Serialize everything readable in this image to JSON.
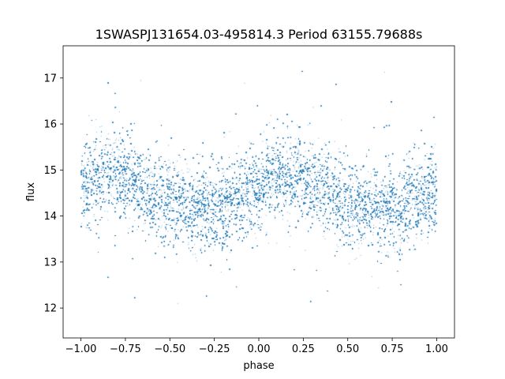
{
  "chart_data": {
    "type": "scatter",
    "title": "1SWASPJ131654.03-495814.3 Period 63155.79688s",
    "xlabel": "phase",
    "ylabel": "flux",
    "xlim": [
      -1.1,
      1.1
    ],
    "ylim": [
      11.35,
      17.7
    ],
    "xticks": [
      -1.0,
      -0.75,
      -0.5,
      -0.25,
      0.0,
      0.25,
      0.5,
      0.75,
      1.0
    ],
    "xtick_labels": [
      "−1.00",
      "−0.75",
      "−0.50",
      "−0.25",
      "0.00",
      "0.25",
      "0.50",
      "0.75",
      "1.00"
    ],
    "yticks": [
      12,
      13,
      14,
      15,
      16,
      17
    ],
    "ytick_labels": [
      "12",
      "13",
      "14",
      "15",
      "16",
      "17"
    ],
    "grid": false,
    "legend": "none",
    "marker_color": "#1f77b4",
    "series": [
      {
        "trend_x": [
          -1.0,
          -0.9,
          -0.8,
          -0.7,
          -0.6,
          -0.5,
          -0.4,
          -0.3,
          -0.2,
          -0.1,
          0.0,
          0.1,
          0.2,
          0.3,
          0.4,
          0.5,
          0.6,
          0.7,
          0.8,
          0.9,
          1.0
        ],
        "trend_y": [
          14.65,
          14.8,
          14.95,
          14.75,
          14.5,
          14.3,
          14.2,
          14.15,
          14.2,
          14.4,
          14.65,
          14.85,
          14.85,
          14.7,
          14.5,
          14.3,
          14.2,
          14.15,
          14.2,
          14.35,
          14.5
        ],
        "scatter_sd": 0.45,
        "n_points": 36000
      }
    ]
  }
}
